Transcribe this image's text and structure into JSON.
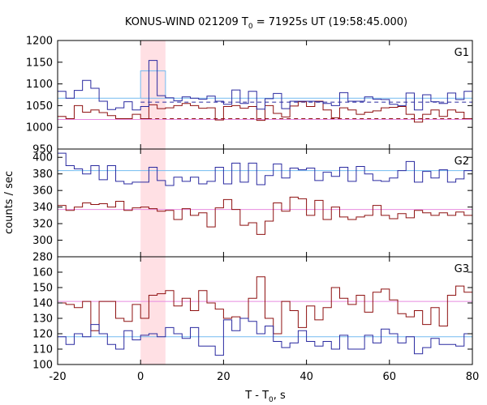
{
  "chart_data": {
    "type": "line",
    "title": "KONUS-WIND 021209 T",
    "title_sub": "0",
    "title_rest": " = 71925s UT (19:58:45.000)",
    "xlabel": "T - T",
    "xlabel_sub": "0",
    "xlabel_rest": ", s",
    "ylabel": "counts / sec",
    "xlim": [
      -20,
      80
    ],
    "x_ticks": [
      "-20",
      "0",
      "20",
      "40",
      "60",
      "80"
    ],
    "x_tick_values": [
      -20,
      0,
      20,
      40,
      60,
      80
    ],
    "highlight_interval": [
      0,
      6
    ],
    "bin_width": 2,
    "colors": {
      "blue": "#2a2aa0",
      "red": "#8e1010",
      "light_blue": "#73bbf0",
      "pink": "#e78be0",
      "highlight": "#ffe0e4"
    },
    "panels": [
      {
        "label": "G1",
        "ylim": [
          950,
          1200
        ],
        "y_ticks": [
          950,
          1000,
          1050,
          1100,
          1150,
          1200
        ],
        "blue_series": [
          1083,
          1067,
          1085,
          1108,
          1090,
          1060,
          1041,
          1045,
          1059,
          1040,
          1048,
          1154,
          1073,
          1068,
          1061,
          1070,
          1067,
          1065,
          1072,
          1060,
          1053,
          1086,
          1055,
          1083,
          1042,
          1066,
          1078,
          1043,
          1060,
          1060,
          1060,
          1059,
          1055,
          1050,
          1080,
          1060,
          1060,
          1070,
          1065,
          1064,
          1053,
          1050,
          1079,
          1040,
          1075,
          1059,
          1055,
          1079,
          1064,
          1083
        ],
        "red_series": [
          1025,
          1020,
          1050,
          1035,
          1040,
          1034,
          1027,
          1020,
          1020,
          1030,
          1020,
          1052,
          1043,
          1045,
          1050,
          1055,
          1050,
          1044,
          1045,
          1017,
          1048,
          1050,
          1044,
          1048,
          1016,
          1050,
          1032,
          1024,
          1049,
          1059,
          1048,
          1060,
          1040,
          1022,
          1045,
          1040,
          1030,
          1035,
          1038,
          1045,
          1046,
          1048,
          1030,
          1012,
          1030,
          1040,
          1025,
          1040,
          1035,
          1020
        ],
        "blue_bg": 1067,
        "red_bg": 1018,
        "blue_dashed": 1058,
        "red_dashed": 1020,
        "blue_step": {
          "x": [
            0,
            6
          ],
          "y": 1130
        }
      },
      {
        "label": "G2",
        "ylim": [
          280,
          410
        ],
        "y_ticks": [
          280,
          300,
          320,
          340,
          360,
          380,
          400
        ],
        "blue_series": [
          405,
          390,
          386,
          380,
          390,
          373,
          390,
          371,
          368,
          370,
          370,
          388,
          372,
          366,
          376,
          371,
          376,
          368,
          371,
          388,
          368,
          393,
          370,
          393,
          367,
          378,
          392,
          375,
          387,
          385,
          387,
          372,
          382,
          377,
          388,
          371,
          389,
          380,
          372,
          371,
          375,
          384,
          395,
          370,
          383,
          375,
          385,
          370,
          374,
          384
        ],
        "red_series": [
          342,
          336,
          340,
          345,
          343,
          344,
          340,
          347,
          336,
          339,
          340,
          338,
          335,
          336,
          325,
          338,
          330,
          333,
          316,
          339,
          349,
          337,
          318,
          321,
          307,
          323,
          345,
          335,
          352,
          350,
          330,
          348,
          325,
          340,
          328,
          325,
          328,
          330,
          342,
          330,
          326,
          332,
          327,
          336,
          333,
          330,
          333,
          330,
          334,
          330
        ],
        "blue_bg": 384,
        "red_bg": 337
      },
      {
        "label": "G3",
        "ylim": [
          100,
          170
        ],
        "y_ticks": [
          100,
          110,
          120,
          130,
          140,
          150,
          160
        ],
        "blue_series": [
          118,
          113,
          120,
          118,
          126,
          120,
          113,
          110,
          122,
          116,
          119,
          120,
          118,
          124,
          120,
          117,
          124,
          112,
          112,
          106,
          129,
          122,
          130,
          128,
          120,
          125,
          115,
          111,
          114,
          122,
          115,
          112,
          115,
          110,
          119,
          110,
          110,
          119,
          114,
          123,
          120,
          114,
          118,
          107,
          111,
          117,
          113,
          113,
          112,
          120
        ],
        "red_series": [
          140,
          139,
          137,
          141,
          122,
          141,
          141,
          130,
          128,
          139,
          130,
          145,
          146,
          148,
          138,
          143,
          135,
          148,
          140,
          136,
          130,
          131,
          130,
          143,
          157,
          130,
          120,
          141,
          135,
          124,
          138,
          129,
          137,
          150,
          143,
          139,
          145,
          134,
          147,
          149,
          142,
          133,
          131,
          135,
          126,
          137,
          125,
          145,
          151,
          147
        ],
        "blue_bg": 118,
        "red_bg": 141
      }
    ]
  }
}
